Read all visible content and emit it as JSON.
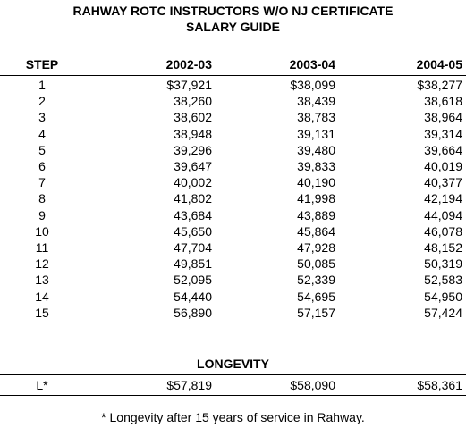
{
  "header": {
    "title_lines": [
      "RAHWAY ROTC INSTRUCTORS W/O NJ CERTIFICATE",
      "SALARY GUIDE"
    ]
  },
  "table": {
    "columns": [
      "STEP",
      "2002-03",
      "2003-04",
      "2004-05"
    ],
    "rows": [
      [
        "1",
        "$37,921",
        "$38,099",
        "$38,277"
      ],
      [
        "2",
        "38,260",
        "38,439",
        "38,618"
      ],
      [
        "3",
        "38,602",
        "38,783",
        "38,964"
      ],
      [
        "4",
        "38,948",
        "39,131",
        "39,314"
      ],
      [
        "5",
        "39,296",
        "39,480",
        "39,664"
      ],
      [
        "6",
        "39,647",
        "39,833",
        "40,019"
      ],
      [
        "7",
        "40,002",
        "40,190",
        "40,377"
      ],
      [
        "8",
        "41,802",
        "41,998",
        "42,194"
      ],
      [
        "9",
        "43,684",
        "43,889",
        "44,094"
      ],
      [
        "10",
        "45,650",
        "45,864",
        "46,078"
      ],
      [
        "11",
        "47,704",
        "47,928",
        "48,152"
      ],
      [
        "12",
        "49,851",
        "50,085",
        "50,319"
      ],
      [
        "13",
        "52,095",
        "52,339",
        "52,583"
      ],
      [
        "14",
        "54,440",
        "54,695",
        "54,950"
      ],
      [
        "15",
        "56,890",
        "57,157",
        "57,424"
      ]
    ]
  },
  "longevity": {
    "title": "LONGEVITY",
    "row": [
      "L*",
      "$57,819",
      "$58,090",
      "$58,361"
    ]
  },
  "footnote": "* Longevity after 15 years of service in Rahway."
}
